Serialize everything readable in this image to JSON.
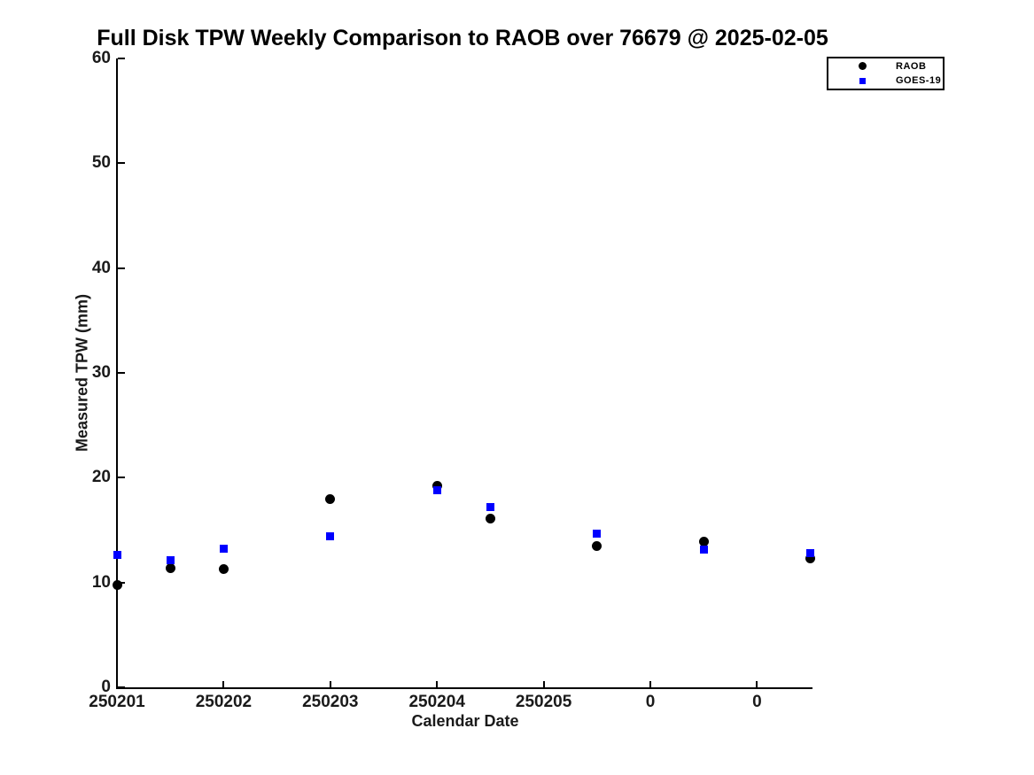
{
  "title": "Full Disk TPW Weekly Comparison to RAOB over 76679 @ 2025-02-05",
  "legend": {
    "items": [
      {
        "label": "RAOB",
        "marker": "circle-icon",
        "color": "#000000"
      },
      {
        "label": "GOES-19",
        "marker": "square-icon",
        "color": "#0000ff"
      }
    ]
  },
  "chart_data": {
    "type": "scatter",
    "title": "Full Disk TPW Weekly Comparison to RAOB over 76679 @ 2025-02-05",
    "xlabel": "Calendar Date",
    "ylabel": "Measured TPW (mm)",
    "x_unit": "days since first tick (250201)",
    "xlim": [
      0,
      6.52
    ],
    "ylim": [
      0,
      60
    ],
    "grid": false,
    "legend_position": "top-right-outside",
    "x_ticks": [
      {
        "pos": 0,
        "label": "250201"
      },
      {
        "pos": 1,
        "label": "250202"
      },
      {
        "pos": 2,
        "label": "250203"
      },
      {
        "pos": 3,
        "label": "250204"
      },
      {
        "pos": 4,
        "label": "250205"
      },
      {
        "pos": 5,
        "label": "0"
      },
      {
        "pos": 6,
        "label": "0"
      }
    ],
    "y_ticks": [
      {
        "pos": 0,
        "label": "0"
      },
      {
        "pos": 10,
        "label": "10"
      },
      {
        "pos": 20,
        "label": "20"
      },
      {
        "pos": 30,
        "label": "30"
      },
      {
        "pos": 40,
        "label": "40"
      },
      {
        "pos": 50,
        "label": "50"
      },
      {
        "pos": 60,
        "label": "60"
      }
    ],
    "series": [
      {
        "name": "RAOB",
        "marker": "circle",
        "color": "#000000",
        "marker_size": 11,
        "x": [
          0,
          0.5,
          1,
          2,
          3,
          3.5,
          4.5,
          5.5,
          6.5
        ],
        "y": [
          9.8,
          11.4,
          11.3,
          18.0,
          19.2,
          16.1,
          13.5,
          13.9,
          12.3
        ]
      },
      {
        "name": "GOES-19",
        "marker": "square",
        "color": "#0000ff",
        "marker_size": 9,
        "x": [
          0,
          0.5,
          1,
          2,
          3,
          3.5,
          4.5,
          5.5,
          6.5
        ],
        "y": [
          12.6,
          12.1,
          13.2,
          14.4,
          18.8,
          17.2,
          14.7,
          13.1,
          12.8
        ]
      }
    ]
  }
}
